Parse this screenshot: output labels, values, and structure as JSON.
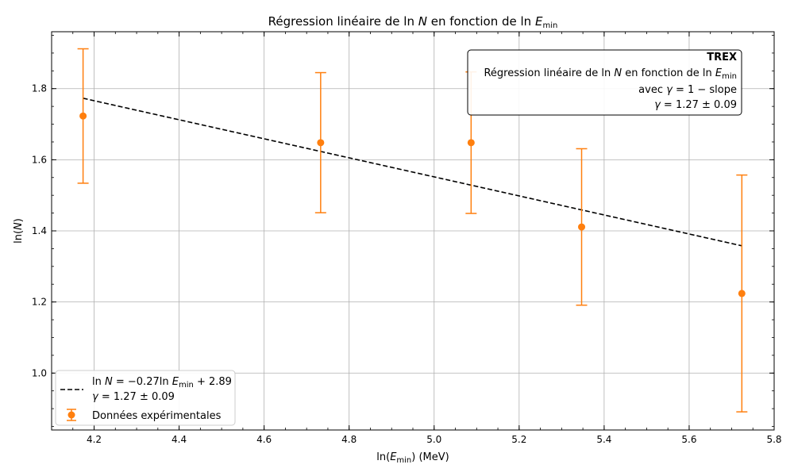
{
  "chart_data": {
    "type": "scatter",
    "title": "Régression linéaire de ln N en fonction de ln E_min",
    "title_parts": [
      "Régression linéaire de ",
      "ln",
      " ",
      "N",
      " en fonction de ",
      "ln",
      " ",
      "E",
      "min"
    ],
    "xlabel_parts": [
      "ln(",
      "E",
      "min",
      ") (MeV)"
    ],
    "ylabel": "ln(N)",
    "ylabel_parts": [
      "ln(",
      "N",
      ")"
    ],
    "xlim": [
      4.1,
      5.8
    ],
    "ylim": [
      0.84,
      1.96
    ],
    "x_ticks": [
      4.2,
      4.4,
      4.6,
      4.8,
      5.0,
      5.2,
      5.4,
      5.6,
      5.8
    ],
    "x_tick_labels": [
      "4.2",
      "4.4",
      "4.6",
      "4.8",
      "5.0",
      "5.2",
      "5.4",
      "5.6",
      "5.8"
    ],
    "y_ticks": [
      1.0,
      1.2,
      1.4,
      1.6,
      1.8
    ],
    "y_tick_labels": [
      "1.0",
      "1.2",
      "1.4",
      "1.6",
      "1.8"
    ],
    "grid": true,
    "series": [
      {
        "name": "Données expérimentales",
        "kind": "errorbar",
        "color": "#ff7f0e",
        "x": [
          4.174,
          4.733,
          5.087,
          5.347,
          5.724
        ],
        "y": [
          1.723,
          1.648,
          1.648,
          1.411,
          1.224
        ],
        "yerr": [
          0.189,
          0.197,
          0.199,
          0.22,
          0.333
        ]
      },
      {
        "name": "fit",
        "kind": "line",
        "color": "#000000",
        "dash": "dashed",
        "x": [
          4.174,
          5.724
        ],
        "y": [
          1.773,
          1.358
        ]
      }
    ],
    "annotation": {
      "placement": "top-right",
      "title": "TREX",
      "line1_parts": [
        "Régression linéaire de ",
        "ln",
        " ",
        "N",
        " en fonction de ",
        "ln",
        " ",
        "E",
        "min"
      ],
      "line2_parts": [
        "avec ",
        "γ",
        " = 1 − slope"
      ],
      "line3_parts": [
        "γ",
        " = 1.27 ± 0.09"
      ]
    },
    "legend": {
      "placement": "lower-left",
      "fit_line1_parts": [
        "ln",
        " ",
        "N",
        " = −0.27",
        "ln",
        " ",
        "E",
        "min",
        " + 2.89"
      ],
      "fit_line2_parts": [
        "γ",
        " = 1.27 ± 0.09"
      ],
      "data_label": "Données expérimentales"
    }
  }
}
